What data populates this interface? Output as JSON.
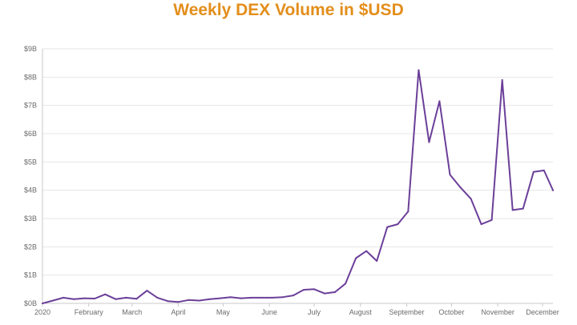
{
  "chart_data": {
    "type": "line",
    "title": "Weekly DEX Volume in $USD",
    "xlabel": "",
    "ylabel": "",
    "x_tick_labels": [
      "2020",
      "February",
      "March",
      "April",
      "May",
      "June",
      "July",
      "August",
      "September",
      "October",
      "November",
      "December"
    ],
    "x_tick_dates": [
      "2020-01-01",
      "2020-02-01",
      "2020-03-01",
      "2020-04-01",
      "2020-05-01",
      "2020-06-01",
      "2020-07-01",
      "2020-08-01",
      "2020-09-01",
      "2020-10-01",
      "2020-11-01",
      "2020-12-01"
    ],
    "y_tick_labels": [
      "$0B",
      "$1B",
      "$2B",
      "$3B",
      "$4B",
      "$5B",
      "$6B",
      "$7B",
      "$8B",
      "$9B"
    ],
    "y_tick_values": [
      0,
      1,
      2,
      3,
      4,
      5,
      6,
      7,
      8,
      9
    ],
    "ylim": [
      0,
      9
    ],
    "xlim": [
      "2020-01-01",
      "2020-12-08"
    ],
    "grid": true,
    "colors": {
      "line": "#6b3f99",
      "title": "#e38e1b",
      "grid": "#e6e6e6",
      "axis": "#c8c8c8",
      "tick_text": "#6b6b6b"
    },
    "series": [
      {
        "x": [
          "2020-01-01",
          "2020-01-08",
          "2020-01-15",
          "2020-01-22",
          "2020-01-29",
          "2020-02-05",
          "2020-02-12",
          "2020-02-19",
          "2020-02-26",
          "2020-03-04",
          "2020-03-11",
          "2020-03-18",
          "2020-03-25",
          "2020-04-01",
          "2020-04-08",
          "2020-04-15",
          "2020-04-22",
          "2020-04-29",
          "2020-05-06",
          "2020-05-13",
          "2020-05-20",
          "2020-05-27",
          "2020-06-03",
          "2020-06-10",
          "2020-06-17",
          "2020-06-24",
          "2020-07-01",
          "2020-07-08",
          "2020-07-15",
          "2020-07-22",
          "2020-07-29",
          "2020-08-05",
          "2020-08-12",
          "2020-08-19",
          "2020-08-26",
          "2020-09-02",
          "2020-09-09",
          "2020-09-16",
          "2020-09-23",
          "2020-09-30",
          "2020-10-07",
          "2020-10-14",
          "2020-10-21",
          "2020-10-28",
          "2020-11-04",
          "2020-11-11",
          "2020-11-18",
          "2020-11-25",
          "2020-12-02",
          "2020-12-08"
        ],
        "y": [
          0.0,
          0.1,
          0.2,
          0.15,
          0.18,
          0.17,
          0.32,
          0.15,
          0.2,
          0.16,
          0.45,
          0.2,
          0.08,
          0.05,
          0.12,
          0.1,
          0.15,
          0.18,
          0.22,
          0.18,
          0.2,
          0.2,
          0.2,
          0.22,
          0.28,
          0.48,
          0.5,
          0.35,
          0.4,
          0.7,
          1.6,
          1.85,
          1.5,
          2.7,
          2.8,
          3.25,
          8.25,
          5.7,
          7.15,
          4.55,
          4.1,
          3.7,
          2.8,
          2.95,
          7.9,
          3.3,
          3.35,
          4.65,
          4.7,
          4.0
        ]
      }
    ]
  }
}
